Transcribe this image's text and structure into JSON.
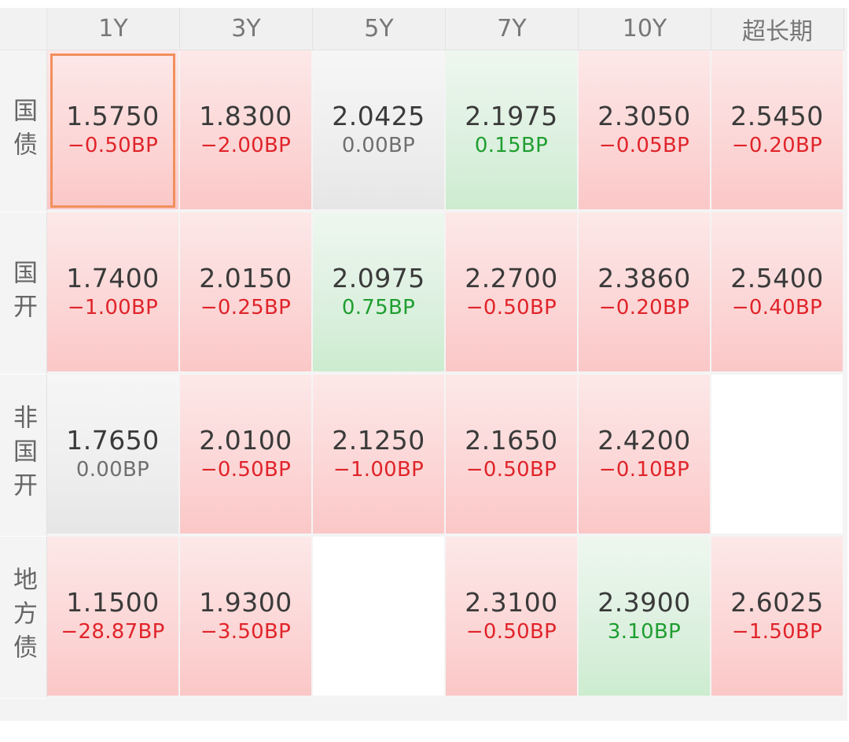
{
  "columns": [
    "1Y",
    "3Y",
    "5Y",
    "7Y",
    "10Y",
    "超长期"
  ],
  "rows": [
    {
      "label": "国债",
      "cells": [
        {
          "value": "1.5750",
          "change": "−0.50BP",
          "trend": "down",
          "selected": true
        },
        {
          "value": "1.8300",
          "change": "−2.00BP",
          "trend": "down"
        },
        {
          "value": "2.0425",
          "change": "0.00BP",
          "trend": "flat"
        },
        {
          "value": "2.1975",
          "change": "0.15BP",
          "trend": "up"
        },
        {
          "value": "2.3050",
          "change": "−0.05BP",
          "trend": "down"
        },
        {
          "value": "2.5450",
          "change": "−0.20BP",
          "trend": "down"
        }
      ]
    },
    {
      "label": "国开",
      "cells": [
        {
          "value": "1.7400",
          "change": "−1.00BP",
          "trend": "down"
        },
        {
          "value": "2.0150",
          "change": "−0.25BP",
          "trend": "down"
        },
        {
          "value": "2.0975",
          "change": "0.75BP",
          "trend": "up"
        },
        {
          "value": "2.2700",
          "change": "−0.50BP",
          "trend": "down"
        },
        {
          "value": "2.3860",
          "change": "−0.20BP",
          "trend": "down"
        },
        {
          "value": "2.5400",
          "change": "−0.40BP",
          "trend": "down"
        }
      ]
    },
    {
      "label": "非国开",
      "cells": [
        {
          "value": "1.7650",
          "change": "0.00BP",
          "trend": "flat"
        },
        {
          "value": "2.0100",
          "change": "−0.50BP",
          "trend": "down"
        },
        {
          "value": "2.1250",
          "change": "−1.00BP",
          "trend": "down"
        },
        {
          "value": "2.1650",
          "change": "−0.50BP",
          "trend": "down"
        },
        {
          "value": "2.4200",
          "change": "−0.10BP",
          "trend": "down"
        },
        null
      ]
    },
    {
      "label": "地方债",
      "cells": [
        {
          "value": "1.1500",
          "change": "−28.87BP",
          "trend": "down"
        },
        {
          "value": "1.9300",
          "change": "−3.50BP",
          "trend": "down"
        },
        null,
        {
          "value": "2.3100",
          "change": "−0.50BP",
          "trend": "down"
        },
        {
          "value": "2.3900",
          "change": "3.10BP",
          "trend": "up"
        },
        {
          "value": "2.6025",
          "change": "−1.50BP",
          "trend": "down"
        }
      ]
    }
  ],
  "colors": {
    "down": "#e0242a",
    "up": "#1f9e30",
    "flat": "#6f6f6f",
    "selected_border": "#f0905c"
  }
}
